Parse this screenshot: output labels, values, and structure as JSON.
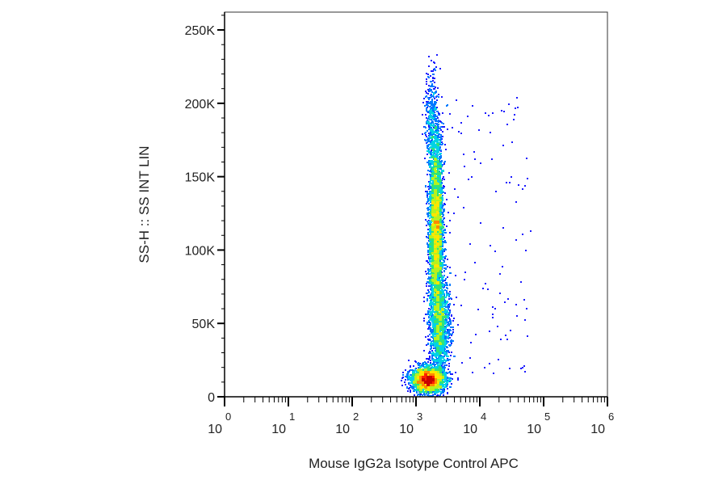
{
  "chart_data": {
    "type": "scatter",
    "style": "density-dot-plot",
    "xlabel": "Mouse IgG2a Isotype Control APC",
    "ylabel": "SS-H :: SS INT LIN",
    "x_scale": "log",
    "y_scale": "linear",
    "xlim": [
      1,
      1000000
    ],
    "ylim": [
      0,
      262144
    ],
    "x_ticks": [
      {
        "base": "10",
        "exp": "0",
        "value": 1
      },
      {
        "base": "10",
        "exp": "1",
        "value": 10
      },
      {
        "base": "10",
        "exp": "2",
        "value": 100
      },
      {
        "base": "10",
        "exp": "3",
        "value": 1000
      },
      {
        "base": "10",
        "exp": "4",
        "value": 10000
      },
      {
        "base": "10",
        "exp": "5",
        "value": 100000
      },
      {
        "base": "10",
        "exp": "6",
        "value": 1000000
      }
    ],
    "y_ticks": [
      {
        "label": "0",
        "value": 0
      },
      {
        "label": "50K",
        "value": 50000
      },
      {
        "label": "100K",
        "value": 100000
      },
      {
        "label": "150K",
        "value": 150000
      },
      {
        "label": "200K",
        "value": 200000
      },
      {
        "label": "250K",
        "value": 250000
      }
    ],
    "populations": [
      {
        "center_x": 1500,
        "center_y": 12000,
        "spread_log_x": 0.13,
        "spread_y": 4200,
        "events": 2600
      },
      {
        "center_x": 2000,
        "center_y": 115000,
        "spread_log_x": 0.055,
        "spread_y": 33000,
        "events": 4000
      },
      {
        "center_x": 2300,
        "center_y": 48000,
        "spread_log_x": 0.08,
        "spread_y": 17000,
        "events": 1500
      },
      {
        "center_x": 1700,
        "center_y": 190000,
        "spread_log_x": 0.05,
        "spread_y": 16000,
        "events": 350
      }
    ],
    "density_colors": [
      "#1a1aff",
      "#0078ff",
      "#00d2e6",
      "#2fe37a",
      "#b7f21f",
      "#ffe600",
      "#ff8a00",
      "#ff2200",
      "#c80000"
    ],
    "grid": false,
    "legend": "none"
  }
}
